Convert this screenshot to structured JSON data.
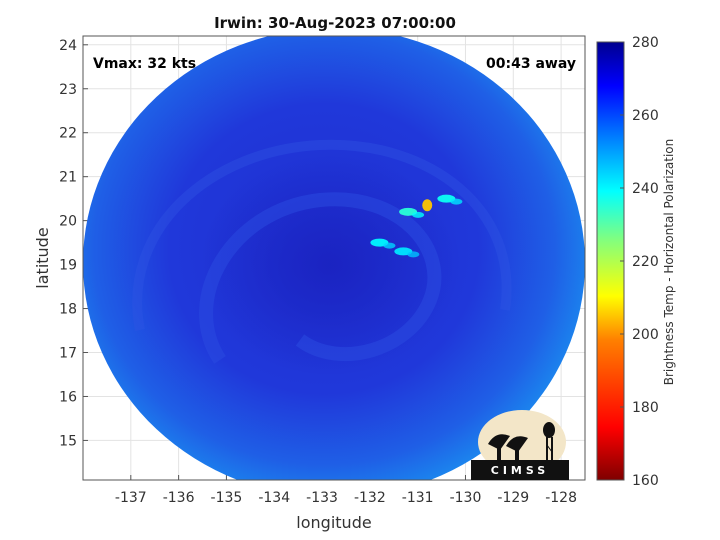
{
  "title": "Irwin: 30-Aug-2023 07:00:00",
  "overlay": {
    "vmax": "Vmax: 32 kts",
    "time_away": "00:43 away"
  },
  "xlabel": "longitude",
  "ylabel": "latitude",
  "x_ticks": [
    "-137",
    "-136",
    "-135",
    "-134",
    "-133",
    "-132",
    "-131",
    "-130",
    "-129",
    "-128"
  ],
  "y_ticks": [
    "15",
    "16",
    "17",
    "18",
    "19",
    "20",
    "21",
    "22",
    "23",
    "24"
  ],
  "colorbar": {
    "label": "Brightness Temp - Horizontal Polarization",
    "ticks": [
      "160",
      "180",
      "200",
      "220",
      "240",
      "260",
      "280"
    ],
    "range": [
      160,
      280
    ],
    "colors": [
      "#7f0000",
      "#ff0000",
      "#ff8000",
      "#ffff00",
      "#80ff80",
      "#00ffff",
      "#0080ff",
      "#0000ff",
      "#00008f"
    ]
  },
  "logo_text": "CIMSS",
  "chart_data": {
    "type": "heatmap",
    "title": "Irwin: 30-Aug-2023 07:00:00",
    "xlabel": "longitude",
    "ylabel": "latitude",
    "xlim": [
      -138,
      -127.5
    ],
    "ylim": [
      14.1,
      24.2
    ],
    "color_range": [
      160,
      280
    ],
    "colorbar_label": "Brightness Temp - Horizontal Polarization",
    "grid": true,
    "background_tb": 262,
    "outer_ring_tb": 250,
    "cold_features": [
      {
        "lon": -130.8,
        "lat": 20.35,
        "tb": 205
      },
      {
        "lon": -131.2,
        "lat": 20.2,
        "tb": 235
      },
      {
        "lon": -130.4,
        "lat": 20.5,
        "tb": 238
      },
      {
        "lon": -131.8,
        "lat": 19.5,
        "tb": 240
      },
      {
        "lon": -131.3,
        "lat": 19.3,
        "tb": 242
      }
    ]
  }
}
